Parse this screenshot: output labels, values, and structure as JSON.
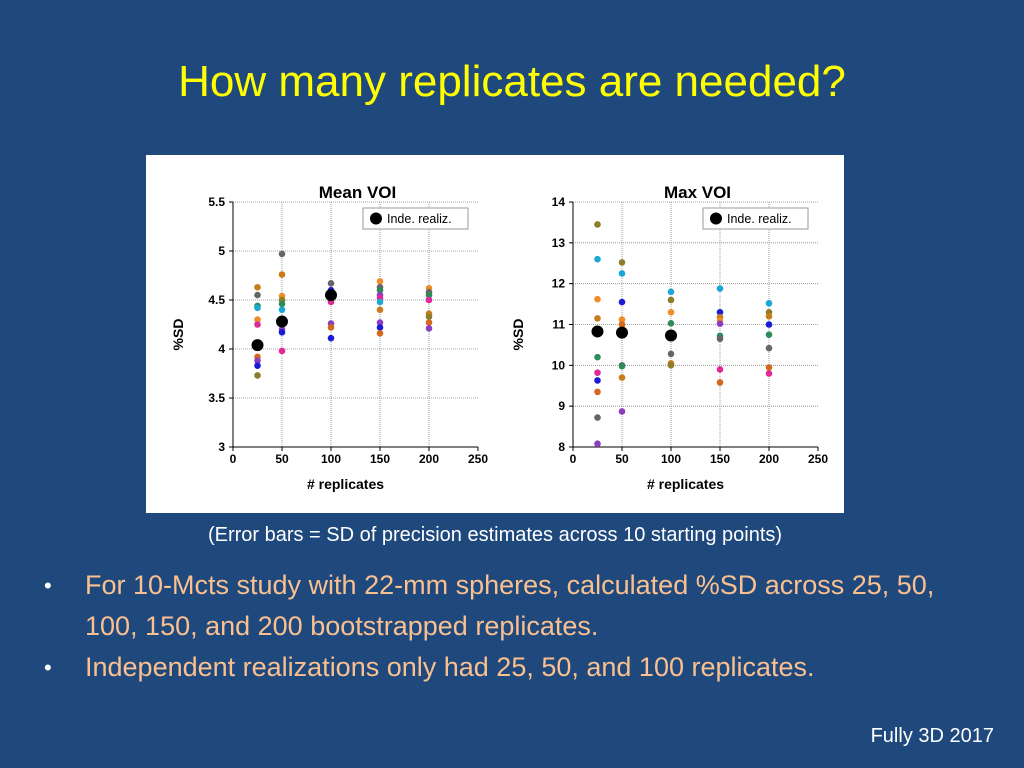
{
  "slide": {
    "title": "How many replicates are needed?",
    "caption": "(Error bars = SD of precision estimates across 10 starting points)",
    "bullets": [
      "For 10-Mcts study with 22-mm spheres, calculated %SD across 25, 50, 100, 150, and 200 bootstrapped replicates.",
      "Independent realizations only had 25, 50, and 100 replicates."
    ],
    "footer": "Fully 3D 2017",
    "colors": {
      "background": "#1f497d",
      "title": "#ffff00",
      "bullet_text": "#fac090"
    }
  },
  "chart_data": [
    {
      "type": "scatter",
      "title": "Mean VOI",
      "xlabel": "# replicates",
      "ylabel": "%SD",
      "xlim": [
        0,
        250
      ],
      "ylim": [
        3,
        5.5
      ],
      "xticks": [
        "0",
        "50",
        "100",
        "150",
        "200",
        "250"
      ],
      "yticks": [
        "3",
        "3.5",
        "4",
        "4.5",
        "5",
        "5.5"
      ],
      "grid": true,
      "legend": {
        "position": "top-right",
        "label": "Inde. realiz."
      },
      "inde_realiz": {
        "x": [
          25,
          50,
          100
        ],
        "y": [
          4.04,
          4.28,
          4.55
        ]
      },
      "bootstrap_points": [
        {
          "x": 25,
          "y": 4.63,
          "color": "#c87d1a"
        },
        {
          "x": 25,
          "y": 4.55,
          "color": "#666666"
        },
        {
          "x": 25,
          "y": 4.44,
          "color": "#2e8b57"
        },
        {
          "x": 25,
          "y": 4.42,
          "color": "#1ba7d6"
        },
        {
          "x": 25,
          "y": 4.3,
          "color": "#f08c2a"
        },
        {
          "x": 25,
          "y": 4.25,
          "color": "#e0289a"
        },
        {
          "x": 25,
          "y": 3.92,
          "color": "#d2691e"
        },
        {
          "x": 25,
          "y": 3.88,
          "color": "#8b3fbf"
        },
        {
          "x": 25,
          "y": 3.83,
          "color": "#1b1bd6"
        },
        {
          "x": 25,
          "y": 3.73,
          "color": "#8b7d2a"
        },
        {
          "x": 50,
          "y": 4.97,
          "color": "#666666"
        },
        {
          "x": 50,
          "y": 4.76,
          "color": "#c87d1a"
        },
        {
          "x": 50,
          "y": 4.54,
          "color": "#f08c2a"
        },
        {
          "x": 50,
          "y": 4.5,
          "color": "#8b7d2a"
        },
        {
          "x": 50,
          "y": 4.46,
          "color": "#2e8b57"
        },
        {
          "x": 50,
          "y": 4.4,
          "color": "#1ba7d6"
        },
        {
          "x": 50,
          "y": 4.25,
          "color": "#d2691e"
        },
        {
          "x": 50,
          "y": 4.2,
          "color": "#8b3fbf"
        },
        {
          "x": 50,
          "y": 4.17,
          "color": "#1b1bd6"
        },
        {
          "x": 50,
          "y": 3.98,
          "color": "#e0289a"
        },
        {
          "x": 100,
          "y": 4.67,
          "color": "#666666"
        },
        {
          "x": 100,
          "y": 4.6,
          "color": "#1b1bd6"
        },
        {
          "x": 100,
          "y": 4.57,
          "color": "#2e8b57"
        },
        {
          "x": 100,
          "y": 4.53,
          "color": "#f08c2a"
        },
        {
          "x": 100,
          "y": 4.5,
          "color": "#c87d1a"
        },
        {
          "x": 100,
          "y": 4.48,
          "color": "#e0289a"
        },
        {
          "x": 100,
          "y": 4.26,
          "color": "#8b3fbf"
        },
        {
          "x": 100,
          "y": 4.22,
          "color": "#d2691e"
        },
        {
          "x": 100,
          "y": 4.11,
          "color": "#1b1bd6"
        },
        {
          "x": 150,
          "y": 4.69,
          "color": "#f08c2a"
        },
        {
          "x": 150,
          "y": 4.63,
          "color": "#666666"
        },
        {
          "x": 150,
          "y": 4.6,
          "color": "#2e8b57"
        },
        {
          "x": 150,
          "y": 4.55,
          "color": "#8b3fbf"
        },
        {
          "x": 150,
          "y": 4.52,
          "color": "#e0289a"
        },
        {
          "x": 150,
          "y": 4.48,
          "color": "#1ba7d6"
        },
        {
          "x": 150,
          "y": 4.4,
          "color": "#c87d1a"
        },
        {
          "x": 150,
          "y": 4.27,
          "color": "#8b3fbf"
        },
        {
          "x": 150,
          "y": 4.22,
          "color": "#1b1bd6"
        },
        {
          "x": 150,
          "y": 4.16,
          "color": "#d2691e"
        },
        {
          "x": 200,
          "y": 4.62,
          "color": "#f08c2a"
        },
        {
          "x": 200,
          "y": 4.58,
          "color": "#666666"
        },
        {
          "x": 200,
          "y": 4.55,
          "color": "#2e8b57"
        },
        {
          "x": 200,
          "y": 4.5,
          "color": "#e0289a"
        },
        {
          "x": 200,
          "y": 4.36,
          "color": "#c87d1a"
        },
        {
          "x": 200,
          "y": 4.33,
          "color": "#8b7d2a"
        },
        {
          "x": 200,
          "y": 4.27,
          "color": "#d2691e"
        },
        {
          "x": 200,
          "y": 4.21,
          "color": "#8b3fbf"
        }
      ]
    },
    {
      "type": "scatter",
      "title": "Max VOI",
      "xlabel": "# replicates",
      "ylabel": "%SD",
      "xlim": [
        0,
        250
      ],
      "ylim": [
        8,
        14
      ],
      "xticks": [
        "0",
        "50",
        "100",
        "150",
        "200",
        "250"
      ],
      "yticks": [
        "8",
        "9",
        "10",
        "11",
        "12",
        "13",
        "14"
      ],
      "grid": true,
      "legend": {
        "position": "top-right",
        "label": "Inde. realiz."
      },
      "inde_realiz": {
        "x": [
          25,
          50,
          100
        ],
        "y": [
          10.83,
          10.8,
          10.73
        ]
      },
      "bootstrap_points": [
        {
          "x": 25,
          "y": 13.45,
          "color": "#8b7d2a"
        },
        {
          "x": 25,
          "y": 12.6,
          "color": "#1ba7d6"
        },
        {
          "x": 25,
          "y": 11.62,
          "color": "#f08c2a"
        },
        {
          "x": 25,
          "y": 11.15,
          "color": "#c87d1a"
        },
        {
          "x": 25,
          "y": 10.2,
          "color": "#2e8b57"
        },
        {
          "x": 25,
          "y": 9.82,
          "color": "#e0289a"
        },
        {
          "x": 25,
          "y": 9.63,
          "color": "#1b1bd6"
        },
        {
          "x": 25,
          "y": 9.35,
          "color": "#d2691e"
        },
        {
          "x": 25,
          "y": 8.72,
          "color": "#666666"
        },
        {
          "x": 25,
          "y": 8.08,
          "color": "#8b3fbf"
        },
        {
          "x": 50,
          "y": 12.52,
          "color": "#8b7d2a"
        },
        {
          "x": 50,
          "y": 12.25,
          "color": "#1ba7d6"
        },
        {
          "x": 50,
          "y": 11.55,
          "color": "#1b1bd6"
        },
        {
          "x": 50,
          "y": 11.12,
          "color": "#f08c2a"
        },
        {
          "x": 50,
          "y": 11.0,
          "color": "#d2691e"
        },
        {
          "x": 50,
          "y": 10.75,
          "color": "#e0289a"
        },
        {
          "x": 50,
          "y": 10.0,
          "color": "#666666"
        },
        {
          "x": 50,
          "y": 9.98,
          "color": "#2e8b57"
        },
        {
          "x": 50,
          "y": 9.7,
          "color": "#c87d1a"
        },
        {
          "x": 50,
          "y": 8.87,
          "color": "#8b3fbf"
        },
        {
          "x": 100,
          "y": 11.8,
          "color": "#1ba7d6"
        },
        {
          "x": 100,
          "y": 11.6,
          "color": "#8b7d2a"
        },
        {
          "x": 100,
          "y": 11.3,
          "color": "#f08c2a"
        },
        {
          "x": 100,
          "y": 11.03,
          "color": "#2e8b57"
        },
        {
          "x": 100,
          "y": 10.7,
          "color": "#e0289a"
        },
        {
          "x": 100,
          "y": 10.28,
          "color": "#666666"
        },
        {
          "x": 100,
          "y": 10.05,
          "color": "#c87d1a"
        },
        {
          "x": 100,
          "y": 10.0,
          "color": "#8b7d2a"
        },
        {
          "x": 150,
          "y": 11.88,
          "color": "#1ba7d6"
        },
        {
          "x": 150,
          "y": 11.3,
          "color": "#1b1bd6"
        },
        {
          "x": 150,
          "y": 11.18,
          "color": "#c87d1a"
        },
        {
          "x": 150,
          "y": 11.1,
          "color": "#f08c2a"
        },
        {
          "x": 150,
          "y": 11.02,
          "color": "#8b3fbf"
        },
        {
          "x": 150,
          "y": 10.72,
          "color": "#2e8b57"
        },
        {
          "x": 150,
          "y": 10.65,
          "color": "#666666"
        },
        {
          "x": 150,
          "y": 9.9,
          "color": "#e0289a"
        },
        {
          "x": 150,
          "y": 9.58,
          "color": "#d2691e"
        },
        {
          "x": 200,
          "y": 11.52,
          "color": "#1ba7d6"
        },
        {
          "x": 200,
          "y": 11.3,
          "color": "#8b7d2a"
        },
        {
          "x": 200,
          "y": 11.2,
          "color": "#c87d1a"
        },
        {
          "x": 200,
          "y": 11.0,
          "color": "#1b1bd6"
        },
        {
          "x": 200,
          "y": 10.75,
          "color": "#2e8b57"
        },
        {
          "x": 200,
          "y": 10.42,
          "color": "#666666"
        },
        {
          "x": 200,
          "y": 9.95,
          "color": "#d2691e"
        },
        {
          "x": 200,
          "y": 9.8,
          "color": "#e0289a"
        }
      ]
    }
  ]
}
